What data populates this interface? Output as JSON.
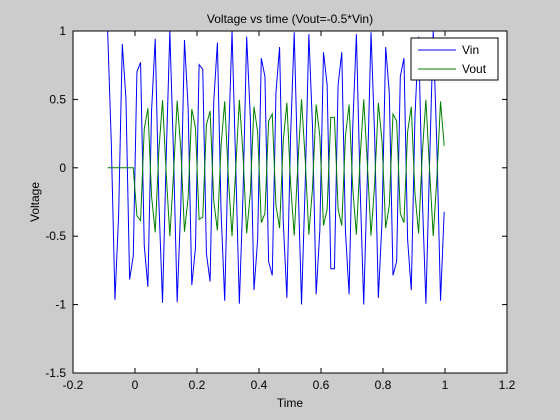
{
  "chart_data": {
    "type": "line",
    "title": "Voltage vs time (Vout=-0.5*Vin)",
    "xlabel": "Time",
    "ylabel": "Voltage",
    "xlim": [
      -0.2,
      1.2
    ],
    "ylim": [
      -1.5,
      1
    ],
    "xticks": [
      "-0.2",
      "0",
      "0.2",
      "0.4",
      "0.6",
      "0.8",
      "1",
      "1.2"
    ],
    "xtick_values": [
      -0.2,
      0,
      0.2,
      0.4,
      0.6,
      0.8,
      1,
      1.2
    ],
    "yticks": [
      "-1.5",
      "-1",
      "-0.5",
      "0",
      "0.5",
      "1"
    ],
    "ytick_values": [
      -1.5,
      -1,
      -0.5,
      0,
      0.5,
      1
    ],
    "grid": false,
    "legend_position": "top-right",
    "series": [
      {
        "name": "Vin",
        "color": "#0000ff",
        "signal": {
          "kind": "sine",
          "amplitude": 1,
          "frequency_hz": 20,
          "sample_interval": 0.0118,
          "t_start": -0.0882,
          "t_end": 1.0
        }
      },
      {
        "name": "Vout",
        "color": "#007f00",
        "signal": {
          "kind": "sine",
          "amplitude": -0.5,
          "frequency_hz": 20,
          "sample_interval": 0.0118,
          "t_start": 0.0,
          "t_end": 1.0,
          "leading_zero_until": 0.0,
          "plot_from": -0.0882
        }
      }
    ]
  }
}
